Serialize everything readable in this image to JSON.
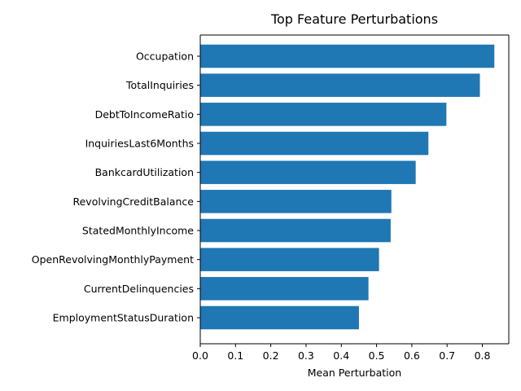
{
  "chart_data": {
    "type": "bar",
    "orientation": "horizontal",
    "title": "Top Feature Perturbations",
    "xlabel": "Mean Perturbation",
    "ylabel": "",
    "xlim": [
      0,
      0.875
    ],
    "xticks": [
      "0.0",
      "0.1",
      "0.2",
      "0.3",
      "0.4",
      "0.5",
      "0.6",
      "0.7",
      "0.8"
    ],
    "categories": [
      "Occupation",
      "TotalInquiries",
      "DebtToIncomeRatio",
      "InquiriesLast6Months",
      "BankcardUtilization",
      "RevolvingCreditBalance",
      "StatedMonthlyIncome",
      "OpenRevolvingMonthlyPayment",
      "CurrentDelinquencies",
      "EmploymentStatusDuration"
    ],
    "values": [
      0.834,
      0.793,
      0.698,
      0.647,
      0.611,
      0.542,
      0.54,
      0.507,
      0.477,
      0.45
    ],
    "bar_color": "#1f77b4",
    "grid": false,
    "legend": "none"
  }
}
